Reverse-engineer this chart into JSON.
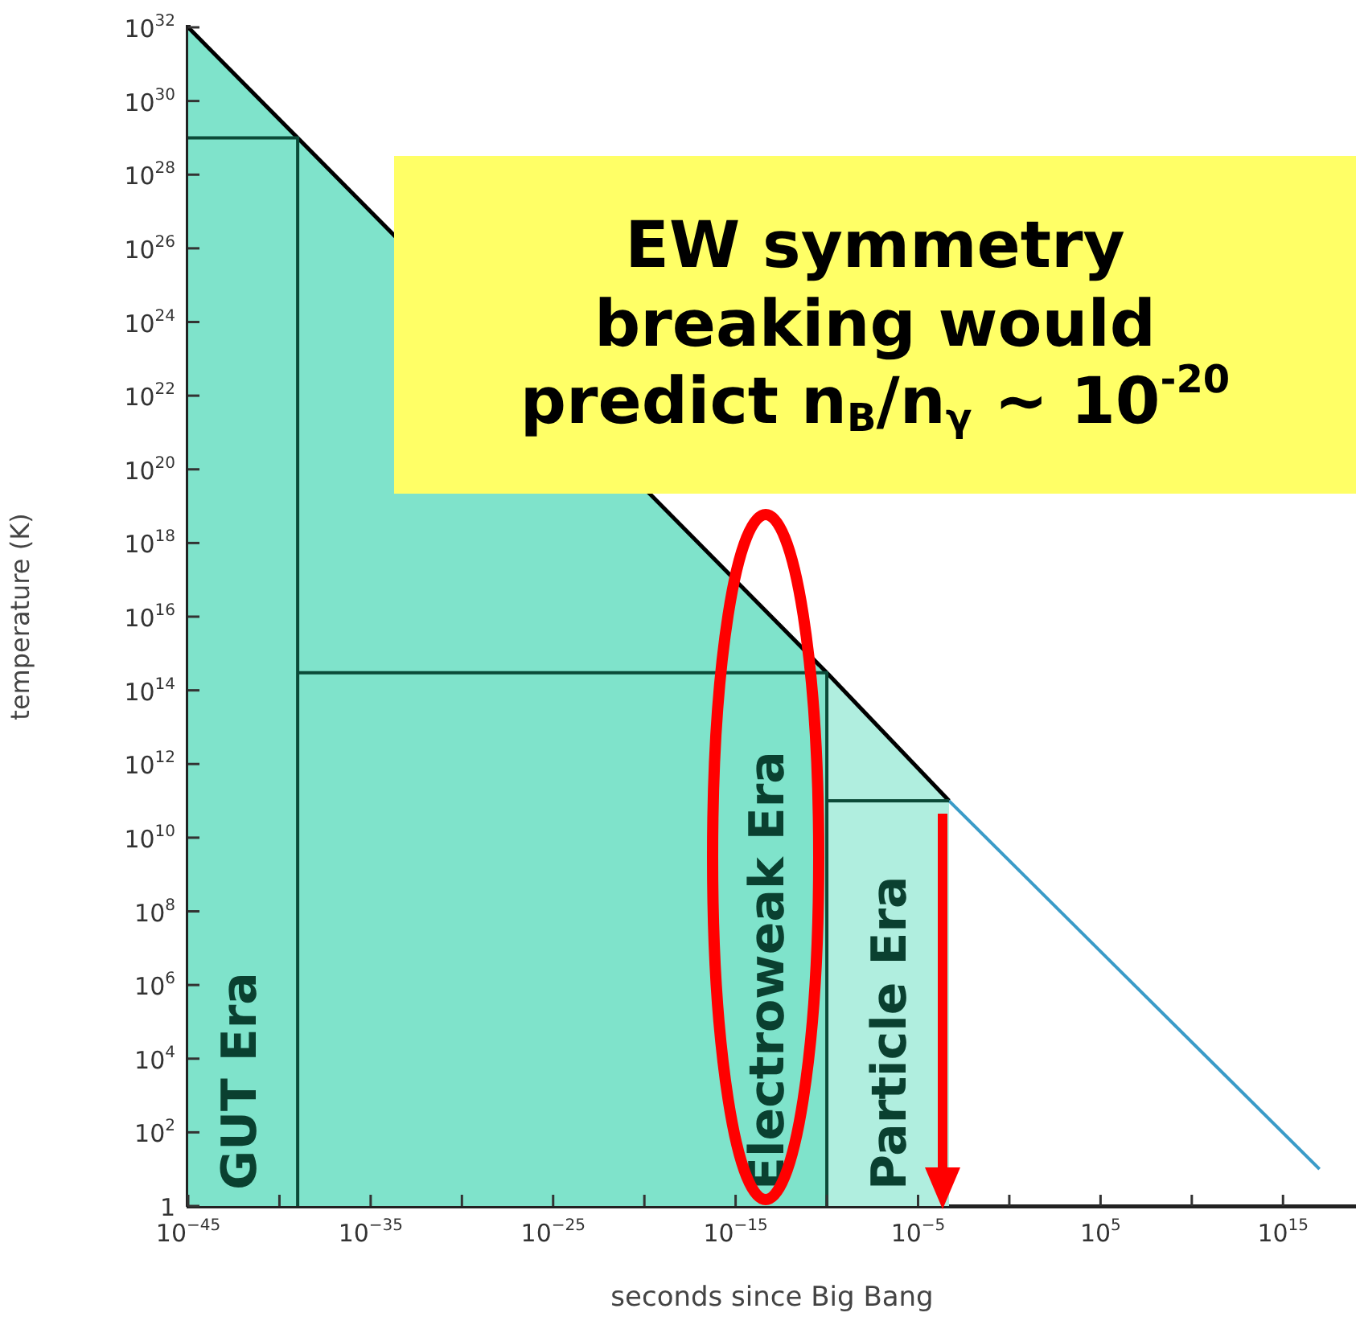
{
  "chart_data": {
    "type": "area",
    "xlabel": "seconds since Big Bang",
    "ylabel": "temperature (K)",
    "log": "xy",
    "grid": false,
    "legend": false,
    "marker": "none",
    "xlim": [
      1e-45,
      1e+19
    ],
    "ylim": [
      1,
      1e+32
    ],
    "xticks": [
      {
        "value": 1e-45,
        "label": "10$^{−45}$"
      },
      {
        "value": 1e-40,
        "label": null
      },
      {
        "value": 1e-35,
        "label": "10$^{−35}$"
      },
      {
        "value": 1e-30,
        "label": null
      },
      {
        "value": 1e-25,
        "label": "10$^{−25}$"
      },
      {
        "value": 1e-20,
        "label": null
      },
      {
        "value": 1e-15,
        "label": "10$^{−15}$"
      },
      {
        "value": 1e-10,
        "label": null
      },
      {
        "value": 1e-05,
        "label": "10$^{−5}$"
      },
      {
        "value": 1,
        "label": null
      },
      {
        "value": 100000.0,
        "label": "10$^{5}$"
      },
      {
        "value": 10000000000.0,
        "label": null
      },
      {
        "value": 1000000000000000.0,
        "label": "10$^{15}$"
      }
    ],
    "yticks": [
      1,
      {
        "value": 100.0,
        "label": "10$^{2}$"
      },
      {
        "value": 10000.0,
        "label": "10$^{4}$"
      },
      {
        "value": 1000000.0,
        "label": "10$^{6}$"
      },
      {
        "value": 100000000.0,
        "label": "10$^{8}$"
      },
      {
        "value": 10000000000.0,
        "label": "10$^{10}$"
      },
      {
        "value": 1000000000000.0,
        "label": "10$^{12}$"
      },
      {
        "value": 100000000000000.0,
        "label": "10$^{14}$"
      },
      {
        "value": 1e+16,
        "label": "10$^{16}$"
      },
      {
        "value": 1e+18,
        "label": "10$^{18}$"
      },
      {
        "value": 1e+20,
        "label": "10$^{20}$"
      },
      {
        "value": 1e+22,
        "label": "10$^{22}$"
      },
      {
        "value": 1e+24,
        "label": "10$^{24}$"
      },
      {
        "value": 1e+26,
        "label": "10$^{26}$"
      },
      {
        "value": 1e+28,
        "label": "10$^{28}$"
      },
      {
        "value": 1e+30,
        "label": "10$^{30}$"
      },
      {
        "value": 1e+32,
        "label": "10$^{32}$"
      }
    ],
    "series": [
      {
        "name": "GUT Era",
        "type": "area",
        "color": "#7fe3cb",
        "x": [
          1e-45,
          1e-39
        ],
        "values": [
          1e+32,
          1e+29
        ]
      },
      {
        "name": "Electroweak Era",
        "type": "area",
        "color": "#7fe3cb",
        "x": [
          1e-39,
          1e-10
        ],
        "values": [
          1e+29,
          300000000000000.0
        ]
      },
      {
        "name": "Particle Era",
        "type": "area",
        "color": "#b0eedf",
        "x": [
          1e-10,
          0.0005
        ],
        "values": [
          300000000000000.0,
          100000000000.0
        ]
      },
      {
        "type": "line",
        "color": "#0b4a38",
        "x": [
          1e-45,
          1e-39,
          1e-39
        ],
        "values": [
          1e+29,
          1e+29,
          1
        ]
      },
      {
        "type": "line",
        "color": "#0b4a38",
        "x": [
          1e-39,
          1e-10,
          1e-10
        ],
        "values": [
          300000000000000.0,
          300000000000000.0,
          1
        ]
      },
      {
        "type": "line",
        "color": "#0b4a38",
        "x": [
          1e-10,
          0.0005
        ],
        "values": [
          100000000000.0,
          100000000000.0
        ]
      },
      {
        "type": "line",
        "color": "#3a9bc8",
        "x": [
          0.0005,
          1e+17
        ],
        "values": [
          100000000000.0,
          10
        ]
      }
    ],
    "annotations": [
      "EW symmetry breaking would predict n$_{B}$/n$_{γ}$ ~ 10$^{-20}$"
    ]
  }
}
